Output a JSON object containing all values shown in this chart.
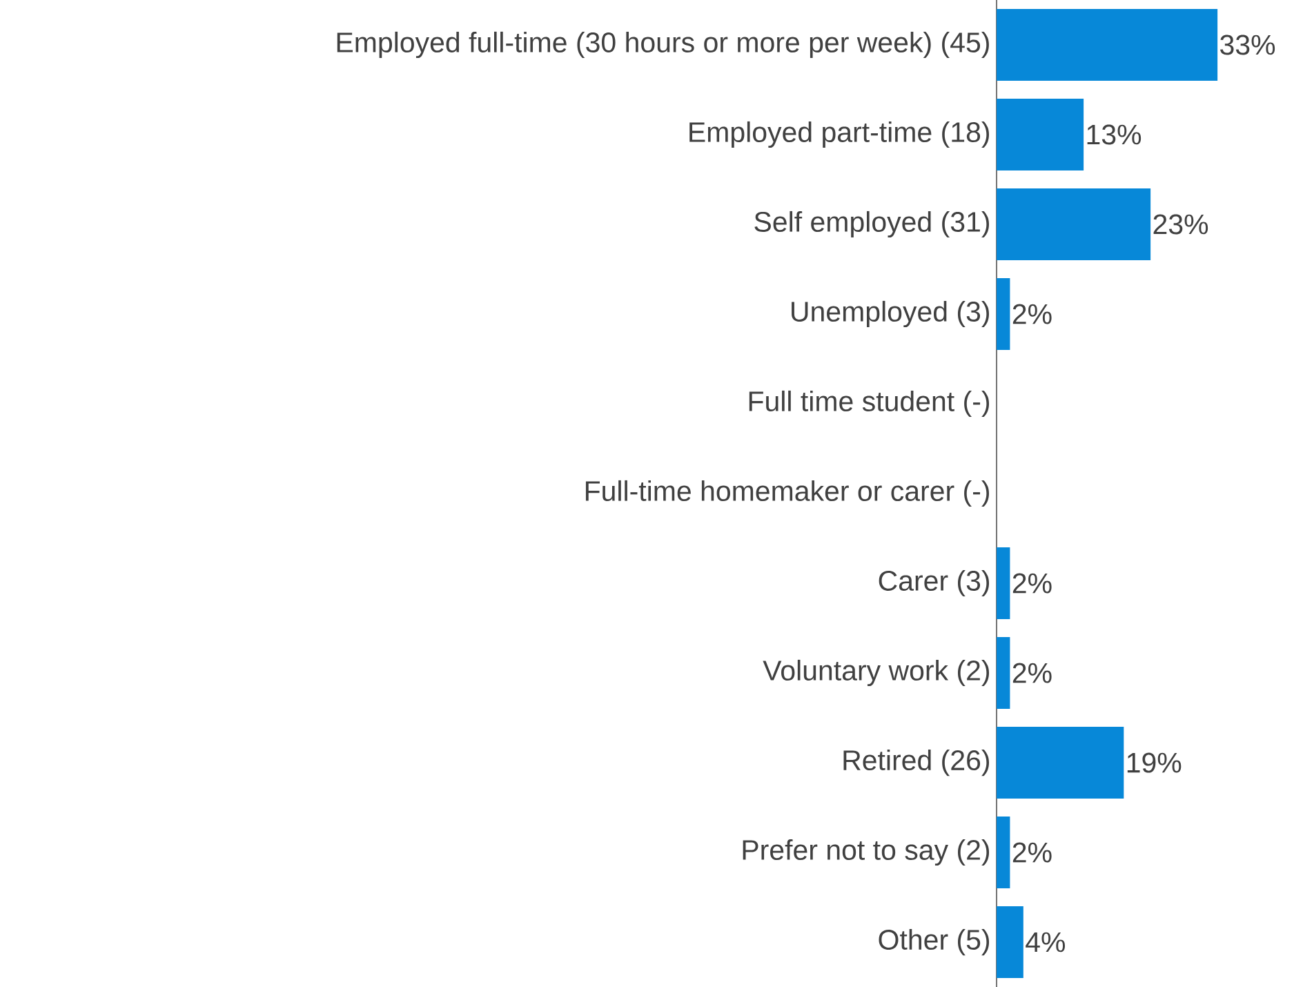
{
  "chart_data": {
    "type": "bar",
    "orientation": "horizontal",
    "categories": [
      "Employed full-time (30 hours or more per week) (45)",
      "Employed part-time (18)",
      "Self employed (31)",
      "Unemployed (3)",
      "Full time student (-)",
      "Full-time homemaker or carer (-)",
      "Carer (3)",
      "Voluntary work (2)",
      "Retired (26)",
      "Prefer not to say (2)",
      "Other  (5)"
    ],
    "values": [
      33,
      13,
      23,
      2,
      null,
      null,
      2,
      2,
      19,
      2,
      4
    ],
    "value_labels": [
      "33%",
      "13%",
      "23%",
      "2%",
      null,
      null,
      "2%",
      "2%",
      "19%",
      "2%",
      "4%"
    ],
    "color": "#0788d8"
  }
}
